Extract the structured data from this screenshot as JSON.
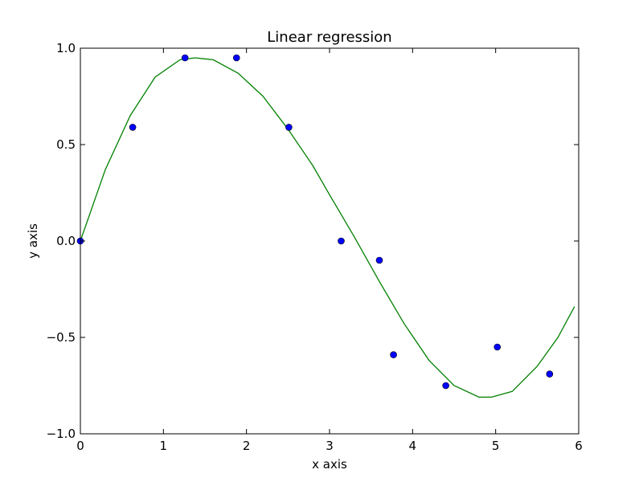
{
  "chart_data": {
    "type": "scatter",
    "title": "Linear regression",
    "xlabel": "x axis",
    "ylabel": "y axis",
    "xlim": [
      0,
      6
    ],
    "ylim": [
      -1.0,
      1.0
    ],
    "xticks": [
      0,
      1,
      2,
      3,
      4,
      5,
      6
    ],
    "xtick_labels": [
      "0",
      "1",
      "2",
      "3",
      "4",
      "5",
      "6"
    ],
    "yticks": [
      -1.0,
      -0.5,
      0.0,
      0.5,
      1.0
    ],
    "ytick_labels": [
      "−1.0",
      "−0.5",
      "0.0",
      "0.5",
      "1.0"
    ],
    "grid": false,
    "series": [
      {
        "kind": "scatter",
        "color": "#0000ff",
        "points": [
          [
            0.0,
            0.0
          ],
          [
            0.63,
            0.59
          ],
          [
            1.26,
            0.95
          ],
          [
            1.88,
            0.95
          ],
          [
            2.51,
            0.59
          ],
          [
            3.14,
            0.0
          ],
          [
            3.6,
            -0.1
          ],
          [
            3.77,
            -0.59
          ],
          [
            4.4,
            -0.75
          ],
          [
            5.02,
            -0.55
          ],
          [
            5.65,
            -0.69
          ]
        ]
      },
      {
        "kind": "line",
        "color": "#008000",
        "points": [
          [
            0.0,
            0.0
          ],
          [
            0.3,
            0.37
          ],
          [
            0.6,
            0.65
          ],
          [
            0.9,
            0.85
          ],
          [
            1.2,
            0.94
          ],
          [
            1.38,
            0.95
          ],
          [
            1.6,
            0.94
          ],
          [
            1.9,
            0.87
          ],
          [
            2.2,
            0.75
          ],
          [
            2.5,
            0.58
          ],
          [
            2.8,
            0.39
          ],
          [
            3.0,
            0.24
          ],
          [
            3.3,
            0.02
          ],
          [
            3.6,
            -0.21
          ],
          [
            3.9,
            -0.43
          ],
          [
            4.2,
            -0.62
          ],
          [
            4.5,
            -0.75
          ],
          [
            4.8,
            -0.81
          ],
          [
            4.95,
            -0.81
          ],
          [
            5.2,
            -0.78
          ],
          [
            5.5,
            -0.65
          ],
          [
            5.75,
            -0.5
          ],
          [
            5.95,
            -0.34
          ]
        ]
      }
    ]
  }
}
